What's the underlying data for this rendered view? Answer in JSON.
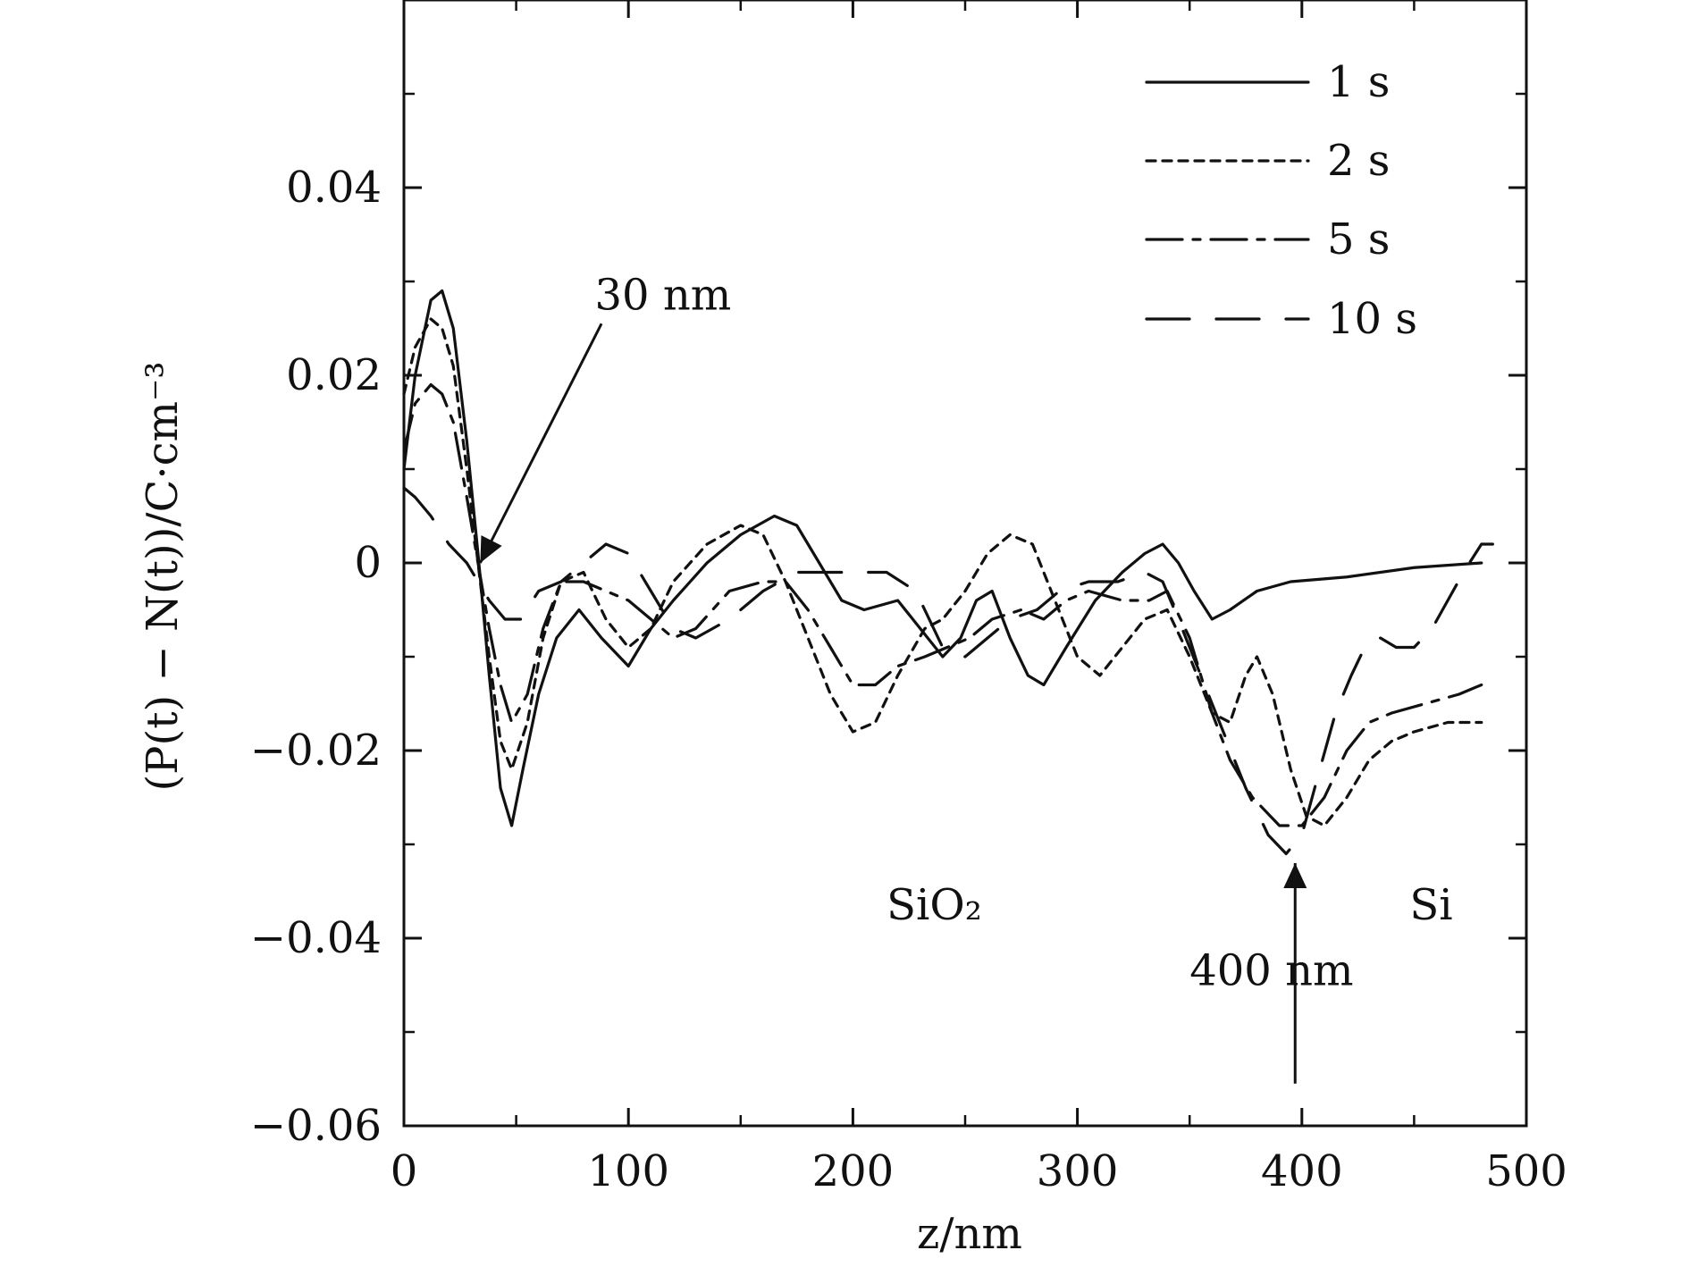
{
  "chart_data": {
    "type": "line",
    "title": "",
    "xlabel": "z/nm",
    "ylabel": "(P(t) − N(t))/C·cm⁻³",
    "xlim": [
      0,
      500
    ],
    "ylim": [
      -0.06,
      0.06
    ],
    "x_ticks": [
      0,
      100,
      200,
      300,
      400,
      500
    ],
    "x_tick_labels": [
      "0",
      "100",
      "200",
      "300",
      "400",
      "500"
    ],
    "y_ticks": [
      -0.06,
      -0.04,
      -0.02,
      0,
      0.02,
      0.04
    ],
    "y_tick_labels": [
      "−0.06",
      "−0.04",
      "−0.02",
      "0",
      "0.02",
      "0.04"
    ],
    "grid": false,
    "legend_position": "top-right",
    "series": [
      {
        "name": "1 s",
        "style": "solid",
        "color": "#111111",
        "points": [
          [
            0,
            0.01
          ],
          [
            5,
            0.02
          ],
          [
            12,
            0.028
          ],
          [
            17,
            0.029
          ],
          [
            22,
            0.025
          ],
          [
            28,
            0.013
          ],
          [
            33,
            0.001
          ],
          [
            38,
            -0.012
          ],
          [
            43,
            -0.024
          ],
          [
            48,
            -0.028
          ],
          [
            53,
            -0.022
          ],
          [
            60,
            -0.014
          ],
          [
            68,
            -0.008
          ],
          [
            78,
            -0.005
          ],
          [
            88,
            -0.008
          ],
          [
            100,
            -0.011
          ],
          [
            110,
            -0.007
          ],
          [
            120,
            -0.004
          ],
          [
            135,
            0.0
          ],
          [
            150,
            0.003
          ],
          [
            165,
            0.005
          ],
          [
            175,
            0.004
          ],
          [
            185,
            0.0
          ],
          [
            195,
            -0.004
          ],
          [
            205,
            -0.005
          ],
          [
            220,
            -0.004
          ],
          [
            230,
            -0.007
          ],
          [
            240,
            -0.01
          ],
          [
            248,
            -0.008
          ],
          [
            255,
            -0.004
          ],
          [
            262,
            -0.003
          ],
          [
            270,
            -0.008
          ],
          [
            278,
            -0.012
          ],
          [
            285,
            -0.013
          ],
          [
            295,
            -0.009
          ],
          [
            308,
            -0.004
          ],
          [
            320,
            -0.001
          ],
          [
            330,
            0.001
          ],
          [
            338,
            0.002
          ],
          [
            345,
            0.0
          ],
          [
            352,
            -0.003
          ],
          [
            360,
            -0.006
          ],
          [
            368,
            -0.005
          ],
          [
            380,
            -0.003
          ],
          [
            395,
            -0.002
          ],
          [
            420,
            -0.0015
          ],
          [
            450,
            -0.0005
          ],
          [
            480,
            0.0
          ]
        ]
      },
      {
        "name": "2 s",
        "style": "dotted",
        "color": "#111111",
        "points": [
          [
            0,
            0.018
          ],
          [
            5,
            0.023
          ],
          [
            12,
            0.026
          ],
          [
            17,
            0.025
          ],
          [
            22,
            0.021
          ],
          [
            28,
            0.01
          ],
          [
            33,
            0.0
          ],
          [
            38,
            -0.01
          ],
          [
            43,
            -0.019
          ],
          [
            48,
            -0.022
          ],
          [
            55,
            -0.017
          ],
          [
            62,
            -0.008
          ],
          [
            70,
            -0.002
          ],
          [
            80,
            -0.001
          ],
          [
            90,
            -0.006
          ],
          [
            100,
            -0.009
          ],
          [
            110,
            -0.007
          ],
          [
            120,
            -0.002
          ],
          [
            135,
            0.002
          ],
          [
            150,
            0.004
          ],
          [
            160,
            0.003
          ],
          [
            170,
            -0.002
          ],
          [
            180,
            -0.008
          ],
          [
            190,
            -0.014
          ],
          [
            200,
            -0.018
          ],
          [
            210,
            -0.017
          ],
          [
            220,
            -0.012
          ],
          [
            232,
            -0.007
          ],
          [
            240,
            -0.006
          ],
          [
            250,
            -0.003
          ],
          [
            260,
            0.001
          ],
          [
            270,
            0.003
          ],
          [
            280,
            0.002
          ],
          [
            290,
            -0.004
          ],
          [
            300,
            -0.01
          ],
          [
            310,
            -0.012
          ],
          [
            320,
            -0.009
          ],
          [
            330,
            -0.006
          ],
          [
            340,
            -0.005
          ],
          [
            350,
            -0.01
          ],
          [
            360,
            -0.016
          ],
          [
            368,
            -0.017
          ],
          [
            375,
            -0.012
          ],
          [
            380,
            -0.01
          ],
          [
            387,
            -0.014
          ],
          [
            395,
            -0.022
          ],
          [
            402,
            -0.027
          ],
          [
            410,
            -0.028
          ],
          [
            420,
            -0.025
          ],
          [
            430,
            -0.021
          ],
          [
            440,
            -0.019
          ],
          [
            450,
            -0.018
          ],
          [
            465,
            -0.017
          ],
          [
            480,
            -0.017
          ]
        ]
      },
      {
        "name": "5 s",
        "style": "dashdot",
        "color": "#111111",
        "points": [
          [
            0,
            0.012
          ],
          [
            5,
            0.017
          ],
          [
            12,
            0.019
          ],
          [
            17,
            0.018
          ],
          [
            22,
            0.015
          ],
          [
            28,
            0.007
          ],
          [
            33,
            0.0
          ],
          [
            38,
            -0.007
          ],
          [
            43,
            -0.013
          ],
          [
            48,
            -0.017
          ],
          [
            55,
            -0.014
          ],
          [
            62,
            -0.007
          ],
          [
            70,
            -0.002
          ],
          [
            80,
            -0.002
          ],
          [
            90,
            -0.003
          ],
          [
            100,
            -0.004
          ],
          [
            110,
            -0.006
          ],
          [
            120,
            -0.008
          ],
          [
            130,
            -0.007
          ],
          [
            145,
            -0.003
          ],
          [
            160,
            -0.002
          ],
          [
            170,
            -0.002
          ],
          [
            180,
            -0.005
          ],
          [
            190,
            -0.009
          ],
          [
            200,
            -0.013
          ],
          [
            210,
            -0.013
          ],
          [
            220,
            -0.011
          ],
          [
            232,
            -0.01
          ],
          [
            242,
            -0.009
          ],
          [
            252,
            -0.008
          ],
          [
            262,
            -0.006
          ],
          [
            275,
            -0.005
          ],
          [
            285,
            -0.006
          ],
          [
            295,
            -0.004
          ],
          [
            305,
            -0.003
          ],
          [
            320,
            -0.004
          ],
          [
            332,
            -0.004
          ],
          [
            340,
            -0.003
          ],
          [
            350,
            -0.008
          ],
          [
            360,
            -0.016
          ],
          [
            368,
            -0.021
          ],
          [
            378,
            -0.025
          ],
          [
            390,
            -0.028
          ],
          [
            400,
            -0.028
          ],
          [
            410,
            -0.025
          ],
          [
            420,
            -0.02
          ],
          [
            430,
            -0.017
          ],
          [
            440,
            -0.016
          ],
          [
            455,
            -0.015
          ],
          [
            470,
            -0.014
          ],
          [
            480,
            -0.013
          ]
        ]
      },
      {
        "name": "10 s",
        "style": "dashed",
        "color": "#111111",
        "points": [
          [
            0,
            0.008
          ],
          [
            5,
            0.007
          ],
          [
            12,
            0.005
          ],
          [
            20,
            0.002
          ],
          [
            28,
            0.0
          ],
          [
            33,
            -0.002
          ],
          [
            38,
            -0.004
          ],
          [
            45,
            -0.006
          ],
          [
            52,
            -0.006
          ],
          [
            60,
            -0.003
          ],
          [
            70,
            -0.002
          ],
          [
            80,
            0.0
          ],
          [
            90,
            0.002
          ],
          [
            100,
            0.001
          ],
          [
            110,
            -0.003
          ],
          [
            120,
            -0.007
          ],
          [
            130,
            -0.008
          ],
          [
            145,
            -0.006
          ],
          [
            160,
            -0.003
          ],
          [
            175,
            -0.001
          ],
          [
            188,
            -0.001
          ],
          [
            200,
            -0.001
          ],
          [
            215,
            -0.001
          ],
          [
            228,
            -0.003
          ],
          [
            240,
            -0.009
          ],
          [
            250,
            -0.01
          ],
          [
            260,
            -0.008
          ],
          [
            270,
            -0.006
          ],
          [
            282,
            -0.005
          ],
          [
            292,
            -0.003
          ],
          [
            305,
            -0.002
          ],
          [
            318,
            -0.002
          ],
          [
            330,
            -0.001
          ],
          [
            338,
            -0.002
          ],
          [
            345,
            -0.006
          ],
          [
            355,
            -0.012
          ],
          [
            365,
            -0.018
          ],
          [
            375,
            -0.024
          ],
          [
            385,
            -0.029
          ],
          [
            393,
            -0.031
          ],
          [
            400,
            -0.029
          ],
          [
            408,
            -0.022
          ],
          [
            415,
            -0.016
          ],
          [
            422,
            -0.012
          ],
          [
            428,
            -0.009
          ],
          [
            435,
            -0.008
          ],
          [
            442,
            -0.009
          ],
          [
            450,
            -0.009
          ],
          [
            458,
            -0.007
          ],
          [
            465,
            -0.004
          ],
          [
            472,
            -0.001
          ],
          [
            480,
            0.002
          ],
          [
            485,
            0.002
          ]
        ]
      }
    ],
    "annotations": [
      {
        "text": "30 nm",
        "x": 34,
        "y": 0.0,
        "label_x": 85,
        "label_y": 0.027
      },
      {
        "text": "400 nm",
        "x": 397,
        "y": -0.032,
        "label_x": 350,
        "label_y": -0.045
      },
      {
        "text": "SiO₂",
        "x": 215,
        "y": -0.038
      },
      {
        "text": "Si",
        "x": 448,
        "y": -0.038
      }
    ]
  }
}
